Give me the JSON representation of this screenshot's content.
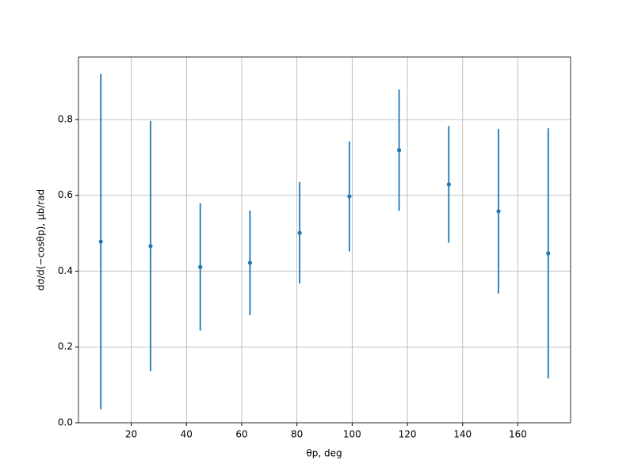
{
  "chart_data": {
    "type": "errorbar",
    "x_label": "θp, deg",
    "y_label": "dσ/d(−cosθp), μb/rad",
    "x": [
      9,
      27,
      45,
      63,
      81,
      99,
      117,
      135,
      153,
      171
    ],
    "series": [
      {
        "color": "#1f77b4",
        "values": [
          0.478,
          0.466,
          0.411,
          0.422,
          0.501,
          0.597,
          0.719,
          0.629,
          0.558,
          0.447
        ],
        "errors": [
          0.443,
          0.33,
          0.168,
          0.138,
          0.134,
          0.145,
          0.16,
          0.154,
          0.217,
          0.33
        ]
      }
    ],
    "xlim": [
      0.9,
      179.1
    ],
    "ylim": [
      0,
      0.965
    ],
    "xticks": [
      20,
      40,
      60,
      80,
      100,
      120,
      140,
      160
    ],
    "yticks": [
      {
        "value": 0,
        "label": "0.0"
      },
      0.2,
      0.4,
      0.6,
      0.8
    ],
    "grid": true
  }
}
